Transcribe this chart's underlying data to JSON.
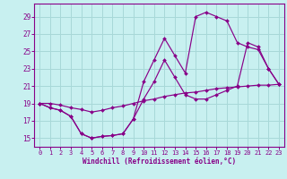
{
  "xlabel": "Windchill (Refroidissement éolien,°C)",
  "bg_color": "#c8f0f0",
  "grid_color": "#a8d8d8",
  "line_color": "#880088",
  "xlim": [
    -0.5,
    23.5
  ],
  "ylim": [
    14.0,
    30.5
  ],
  "yticks": [
    15,
    17,
    19,
    21,
    23,
    25,
    27,
    29
  ],
  "xticks": [
    0,
    1,
    2,
    3,
    4,
    5,
    6,
    7,
    8,
    9,
    10,
    11,
    12,
    13,
    14,
    15,
    16,
    17,
    18,
    19,
    20,
    21,
    22,
    23
  ],
  "line1_x": [
    0,
    1,
    2,
    3,
    4,
    5,
    6,
    7,
    8,
    9,
    10,
    11,
    12,
    13,
    14,
    15,
    16,
    17,
    18,
    19,
    20,
    21,
    22,
    23
  ],
  "line1_y": [
    19.0,
    19.0,
    18.8,
    18.5,
    18.3,
    18.0,
    18.2,
    18.5,
    18.7,
    19.0,
    19.3,
    19.5,
    19.8,
    20.0,
    20.2,
    20.3,
    20.5,
    20.7,
    20.8,
    20.9,
    21.0,
    21.1,
    21.1,
    21.2
  ],
  "line2_x": [
    0,
    1,
    2,
    3,
    4,
    5,
    6,
    7,
    8,
    9,
    10,
    11,
    12,
    13,
    14,
    15,
    16,
    17,
    18,
    19,
    20,
    21,
    22,
    23
  ],
  "line2_y": [
    19.0,
    18.5,
    18.2,
    17.5,
    15.5,
    15.0,
    15.2,
    15.3,
    15.5,
    17.2,
    19.5,
    21.5,
    24.0,
    22.0,
    20.0,
    19.5,
    19.5,
    20.0,
    20.5,
    21.0,
    26.0,
    25.5,
    23.0,
    21.2
  ],
  "line3_x": [
    0,
    1,
    2,
    3,
    4,
    5,
    6,
    7,
    8,
    9,
    10,
    11,
    12,
    13,
    14,
    15,
    16,
    17,
    18,
    19,
    20,
    21,
    22,
    23
  ],
  "line3_y": [
    19.0,
    18.5,
    18.2,
    17.5,
    15.5,
    15.0,
    15.2,
    15.3,
    15.5,
    17.2,
    21.5,
    24.0,
    26.5,
    24.5,
    22.5,
    29.0,
    29.5,
    29.0,
    28.5,
    26.0,
    25.5,
    25.2,
    23.0,
    21.2
  ]
}
